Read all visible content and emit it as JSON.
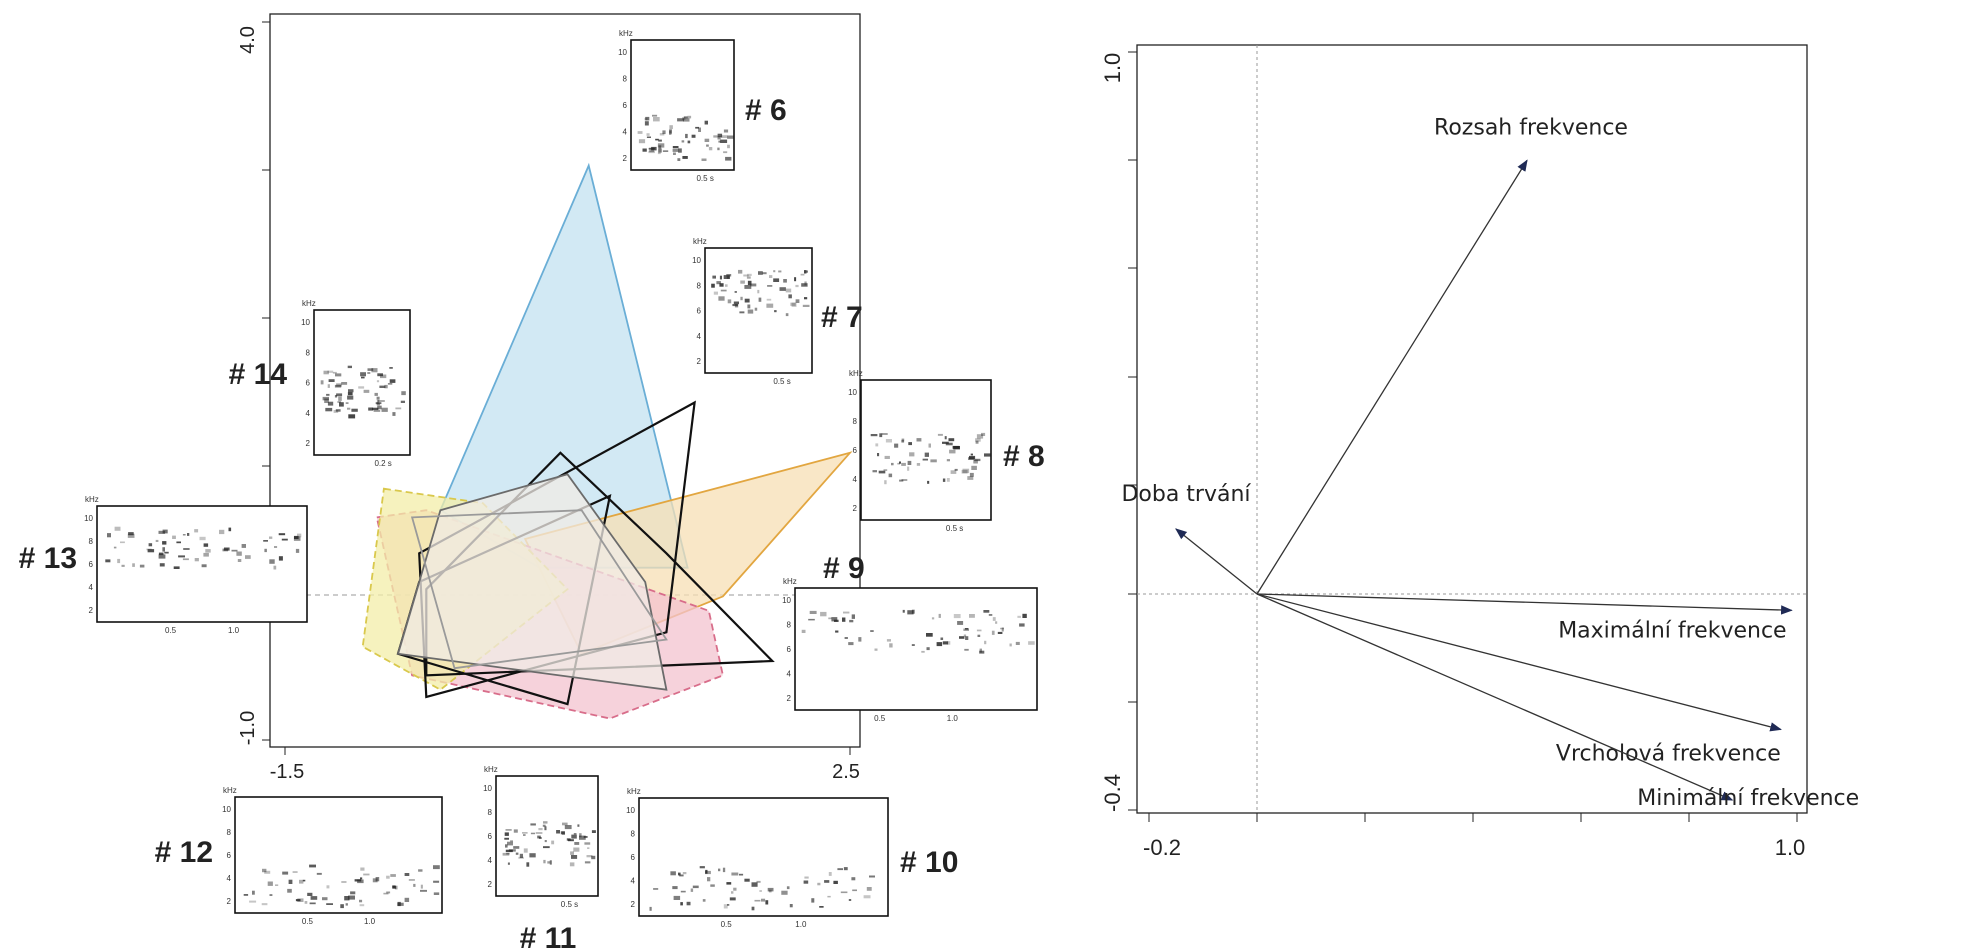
{
  "chart_data": [
    {
      "type": "scatter",
      "title": "",
      "xlabel": "",
      "ylabel": "",
      "xlim": [
        -1.5,
        2.5
      ],
      "ylim": [
        -1.0,
        4.0
      ],
      "x_tick_labels": [
        "-1.5",
        "2.5"
      ],
      "y_tick_labels": [
        "-1.0",
        "4.0"
      ],
      "grid": false,
      "groups": [
        {
          "label": "# 6",
          "color": "#6aaed6",
          "fill": "#c3e1f0",
          "polygon": [
            [
              -0.4,
              0.6
            ],
            [
              0.65,
              3.0
            ],
            [
              1.35,
              0.2
            ],
            [
              0.3,
              0.2
            ]
          ]
        },
        {
          "label": "# 9",
          "color": "#e2a640",
          "fill": "#f7dfb4",
          "polygon": [
            [
              0.2,
              0.4
            ],
            [
              2.5,
              1.0
            ],
            [
              1.6,
              0.0
            ],
            [
              0.6,
              -0.4
            ]
          ]
        },
        {
          "label": "# 10",
          "color": "#d86d8a",
          "fill": "#f3c3cf",
          "polygon": [
            [
              -0.85,
              0.55
            ],
            [
              -0.5,
              0.6
            ],
            [
              1.5,
              -0.1
            ],
            [
              1.6,
              -0.55
            ],
            [
              0.8,
              -0.85
            ],
            [
              -0.6,
              -0.55
            ]
          ]
        },
        {
          "label": "# 12",
          "color": "#d9c84c",
          "fill": "#f3eda8",
          "polygon": [
            [
              -0.8,
              0.75
            ],
            [
              -0.1,
              0.65
            ],
            [
              0.5,
              0.05
            ],
            [
              -0.4,
              -0.65
            ],
            [
              -0.95,
              -0.35
            ]
          ]
        },
        {
          "label": "# 7",
          "color": "#111111",
          "fill": "none",
          "polygon": [
            [
              -0.55,
              0.3
            ],
            [
              1.4,
              1.35
            ],
            [
              1.2,
              -0.25
            ],
            [
              -0.5,
              -0.7
            ]
          ]
        },
        {
          "label": "# 8",
          "color": "#111111",
          "fill": "none",
          "polygon": [
            [
              -0.55,
              0.1
            ],
            [
              0.8,
              0.7
            ],
            [
              0.5,
              -0.75
            ],
            [
              -0.7,
              -0.4
            ]
          ]
        },
        {
          "label": "# 11",
          "color": "#111111",
          "fill": "none",
          "polygon": [
            [
              -0.5,
              0.05
            ],
            [
              0.45,
              1.0
            ],
            [
              1.2,
              0.3
            ],
            [
              1.95,
              -0.45
            ],
            [
              -0.5,
              -0.55
            ]
          ]
        },
        {
          "label": "# 13",
          "color": "#6b6b6b",
          "fill": "#f0ebe6",
          "polygon": [
            [
              -0.4,
              0.6
            ],
            [
              0.5,
              0.85
            ],
            [
              1.05,
              0.1
            ],
            [
              1.2,
              -0.65
            ],
            [
              -0.7,
              -0.4
            ]
          ]
        },
        {
          "label": "# 14",
          "color": "#9a9a9a",
          "fill": "none",
          "polygon": [
            [
              -0.6,
              0.55
            ],
            [
              0.6,
              0.6
            ],
            [
              1.2,
              -0.3
            ],
            [
              -0.3,
              -0.5
            ]
          ]
        }
      ],
      "spectrogram_labels": [
        "# 6",
        "# 7",
        "# 8",
        "# 9",
        "# 10",
        "# 11",
        "# 12",
        "# 13",
        "# 14"
      ],
      "spectrogram_units": {
        "frequency": "kHz",
        "freq_ticks": [
          "10",
          "8",
          "6",
          "4",
          "2"
        ]
      },
      "spectrogram_time_labels": {
        "# 6": [
          "0.5 s"
        ],
        "# 7": [
          "0.5 s"
        ],
        "# 8": [
          "0.5 s"
        ],
        "# 9": [
          "0.5",
          "1.0"
        ],
        "# 10": [
          "0.5",
          "1.0"
        ],
        "# 11": [
          "0.5 s"
        ],
        "# 12": [
          "0.5",
          "1.0"
        ],
        "# 13": [
          "0.5",
          "1.0"
        ],
        "# 14": [
          "0.2 s"
        ]
      }
    },
    {
      "type": "scatter",
      "subtype": "biplot-arrows",
      "title": "",
      "xlabel": "",
      "ylabel": "",
      "xlim": [
        -0.2,
        1.0
      ],
      "ylim": [
        -0.4,
        1.0
      ],
      "x_tick_labels": [
        "-0.2",
        "1.0"
      ],
      "y_tick_labels": [
        "-0.4",
        "1.0"
      ],
      "grid": false,
      "origin": [
        0.0,
        0.0
      ],
      "arrows": [
        {
          "label": "Rozsah frekvence",
          "x": 0.5,
          "y": 0.8
        },
        {
          "label": "Doba trvání",
          "x": -0.15,
          "y": 0.12
        },
        {
          "label": "Maximální frekvence",
          "x": 0.99,
          "y": -0.03
        },
        {
          "label": "Vrcholová frekvence",
          "x": 0.97,
          "y": -0.25
        },
        {
          "label": "Minimální frekvence",
          "x": 0.88,
          "y": -0.38
        }
      ]
    }
  ],
  "colors": {
    "axis": "#222222",
    "arrow_head": "#1f2a55",
    "dashed": "#999999"
  }
}
